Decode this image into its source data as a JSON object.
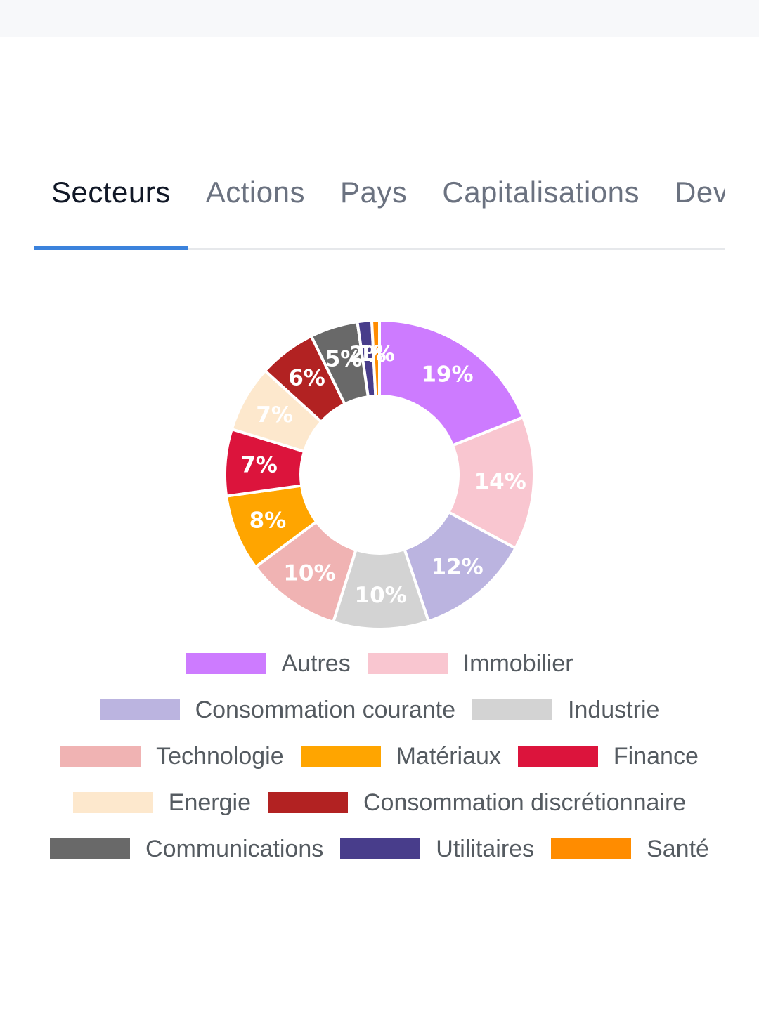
{
  "tabs": [
    {
      "label": "Secteurs",
      "active": true
    },
    {
      "label": "Actions",
      "active": false
    },
    {
      "label": "Pays",
      "active": false
    },
    {
      "label": "Capitalisations",
      "active": false
    },
    {
      "label": "Devises",
      "active": false
    }
  ],
  "chart_data": {
    "type": "pie",
    "donut": true,
    "legend_position": "bottom",
    "categories": [
      "Autres",
      "Immobilier",
      "Consommation courante",
      "Industrie",
      "Technologie",
      "Matériaux",
      "Finance",
      "Energie",
      "Consommation discrétionnaire",
      "Communications",
      "Utilitaires",
      "Santé"
    ],
    "values": [
      19,
      14,
      12,
      10,
      10,
      8,
      7,
      7,
      6,
      5,
      1.5,
      0.8
    ],
    "data_labels": [
      "19%",
      "14%",
      "12%",
      "10%",
      "10%",
      "8%",
      "7%",
      "7%",
      "6%",
      "5%",
      "2%",
      "1%"
    ],
    "colors": [
      "#cd7bff",
      "#f9c6d0",
      "#bbb4e0",
      "#d3d3d3",
      "#f0b3b3",
      "#ffa500",
      "#dc143c",
      "#fde8cd",
      "#b22222",
      "#696969",
      "#483d8b",
      "#ff8c00"
    ]
  }
}
